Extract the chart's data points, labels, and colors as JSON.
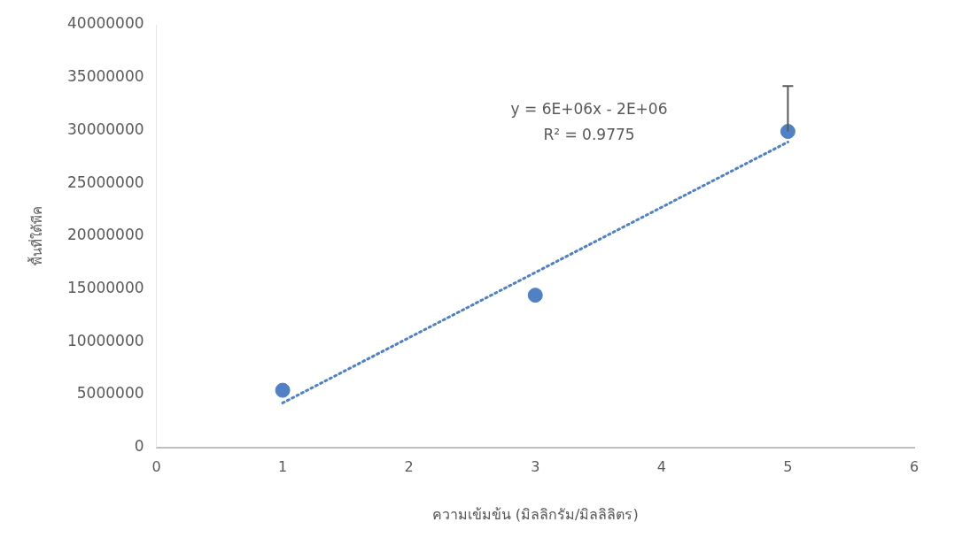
{
  "chart_data": {
    "type": "scatter",
    "xlabel": "ความเข้มข้น (มิลลิกรัม/มิลลิลิตร)",
    "ylabel": "พื้นที่ใต้พีค",
    "annotations": [
      "y = 6E+06x - 2E+06",
      "R² = 0.9775"
    ],
    "series": [
      {
        "x": [
          1,
          3,
          5
        ],
        "values": [
          5400000,
          14400000,
          29900000
        ],
        "errors": [
          null,
          null,
          [
            29900000,
            34200000
          ]
        ],
        "color": "#4f81c4",
        "marker": "circle"
      },
      {
        "type": "line",
        "x": [
          1,
          5
        ],
        "values": [
          4200000,
          28900000
        ],
        "color": "#4f81c4",
        "marker": "none",
        "line_style": "dotted"
      }
    ],
    "xlim": [
      0,
      6
    ],
    "xticks": [
      0,
      1,
      2,
      3,
      4,
      5,
      6
    ],
    "ylim": [
      0,
      40000000
    ],
    "yticks": [
      0,
      5000000,
      10000000,
      15000000,
      20000000,
      25000000,
      30000000,
      35000000,
      40000000
    ],
    "grid": false,
    "legend": false
  }
}
